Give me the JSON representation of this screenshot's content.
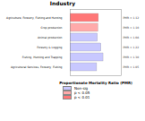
{
  "chart_data": {
    "type": "bar",
    "orientation": "horizontal",
    "title": "Industry",
    "x_label": "Proportionate Mortality Ratio (PMR)",
    "categories": [
      "Agriculture, Forestry, Fishing and Hunting",
      "Crop production",
      "Animal production",
      "Forestry & Logging",
      "Fishing, Hunting and Trapping",
      "Agricultural Services, Forestry, Fishing"
    ],
    "series": [
      {
        "name": "Non-sig",
        "color": "#c8c8ff",
        "values": [
          null,
          null,
          1.08,
          1.22,
          1.3,
          1.05
        ],
        "value_labels": [
          null,
          null,
          "PMR = 1.08",
          "PMR = 1.22",
          "PMR = 1.30",
          "PMR = 1.05"
        ]
      },
      {
        "name": "p < 0.05",
        "color": "#ffaaaa",
        "values": [
          null,
          1.1,
          null,
          null,
          null,
          null
        ],
        "value_labels": [
          null,
          "PMR = 1.10",
          null,
          null,
          null,
          null
        ]
      },
      {
        "name": "p < 0.01",
        "color": "#ff7777",
        "values": [
          1.12,
          null,
          null,
          null,
          null,
          null
        ],
        "value_labels": [
          "PMR = 1.12",
          null,
          null,
          null,
          null,
          null
        ]
      }
    ],
    "xlim": [
      0,
      2
    ],
    "tick_labels": "y",
    "data_labels": true,
    "legend": "bottom-left",
    "stacked": false
  }
}
